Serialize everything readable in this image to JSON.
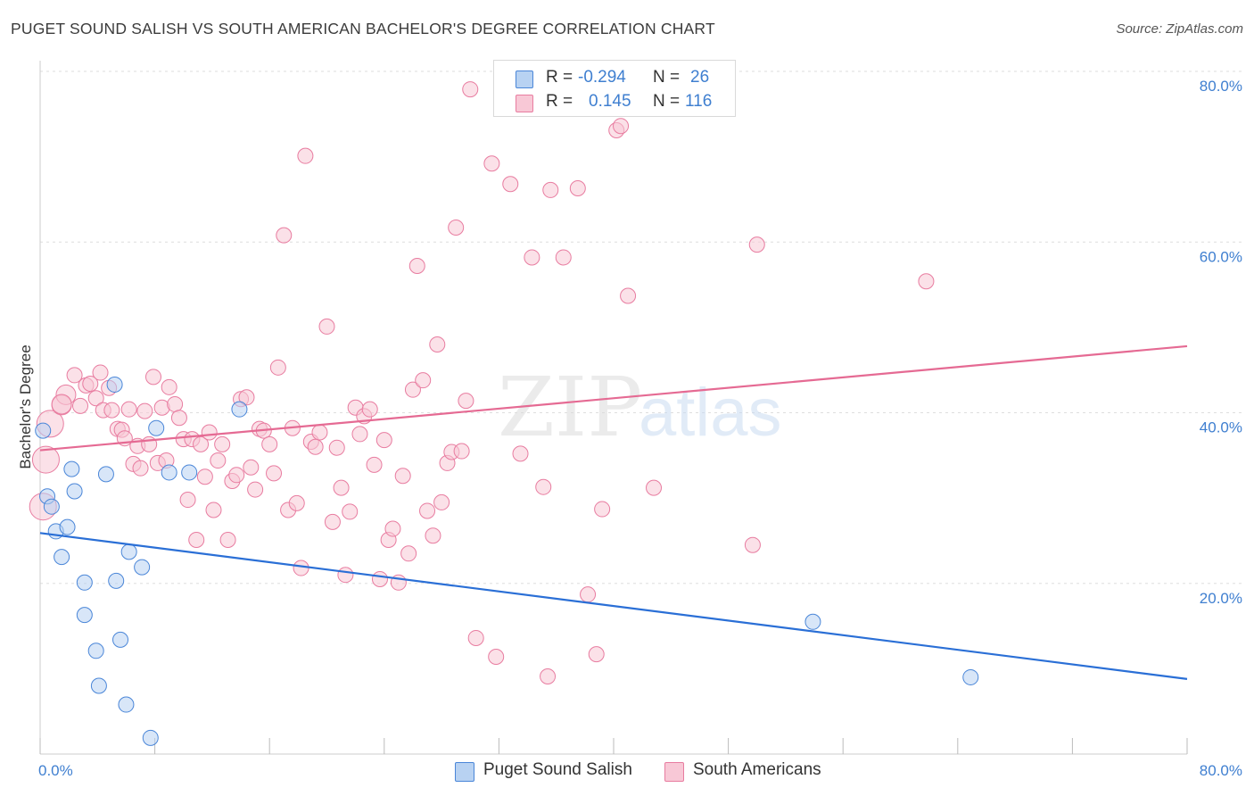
{
  "title": "PUGET SOUND SALISH VS SOUTH AMERICAN BACHELOR'S DEGREE CORRELATION CHART",
  "source": "Source: ZipAtlas.com",
  "watermark": {
    "zip": "ZIP",
    "atlas": "atlas"
  },
  "legend": {
    "r_label": "R =",
    "n_label": "N =",
    "rows": [
      {
        "r": "-0.294",
        "n": "26",
        "color": "#a8c8f0"
      },
      {
        "r": "0.145",
        "n": "116",
        "color": "#f5b6c8"
      }
    ]
  },
  "bottom_legend": [
    {
      "label": "Puget Sound Salish",
      "color": "#a8c8f0"
    },
    {
      "label": "South Americans",
      "color": "#f5b6c8"
    }
  ],
  "chart_data": {
    "type": "scatter",
    "title": "PUGET SOUND SALISH VS SOUTH AMERICAN BACHELOR'S DEGREE CORRELATION CHART",
    "xlabel": "",
    "ylabel": "Bachelor's Degree",
    "xlim": [
      0,
      80
    ],
    "ylim": [
      0,
      80
    ],
    "x_tick_labels": [
      "0.0%",
      "80.0%"
    ],
    "y_ticks": [
      20,
      40,
      60,
      80
    ],
    "y_tick_labels": [
      "20.0%",
      "40.0%",
      "60.0%",
      "80.0%"
    ],
    "grid": true,
    "legend_position": "top-center",
    "series": [
      {
        "name": "Puget Sound Salish",
        "color": "#4a86d8",
        "fill": "#b8d2f2",
        "trend": {
          "x": [
            0,
            80
          ],
          "y": [
            25.9,
            8.8
          ],
          "color": "#2a6fd6"
        },
        "points": [
          [
            0.2,
            37.9
          ],
          [
            0.5,
            30.2
          ],
          [
            0.8,
            29.0
          ],
          [
            1.1,
            26.1
          ],
          [
            1.5,
            23.1
          ],
          [
            1.9,
            26.6
          ],
          [
            2.2,
            33.4
          ],
          [
            2.4,
            30.8
          ],
          [
            3.1,
            16.3
          ],
          [
            3.1,
            20.1
          ],
          [
            3.9,
            12.1
          ],
          [
            4.1,
            8.0
          ],
          [
            4.6,
            32.8
          ],
          [
            5.2,
            43.3
          ],
          [
            5.3,
            20.3
          ],
          [
            5.6,
            13.4
          ],
          [
            6.0,
            5.8
          ],
          [
            6.2,
            23.7
          ],
          [
            7.1,
            21.9
          ],
          [
            7.7,
            1.9
          ],
          [
            8.1,
            38.2
          ],
          [
            9.0,
            33.0
          ],
          [
            10.4,
            33.0
          ],
          [
            13.9,
            40.4
          ],
          [
            53.9,
            15.5
          ],
          [
            64.9,
            9.0
          ]
        ]
      },
      {
        "name": "South Americans",
        "color": "#e87ca0",
        "fill": "#f8c8d6",
        "trend": {
          "x": [
            0,
            80
          ],
          "y": [
            35.6,
            47.8
          ],
          "color": "#e56a93"
        },
        "points": [
          [
            0.2,
            29.0
          ],
          [
            0.4,
            34.5
          ],
          [
            0.7,
            38.7
          ],
          [
            1.5,
            40.9
          ],
          [
            1.8,
            42.1
          ],
          [
            2.4,
            44.4
          ],
          [
            2.8,
            40.8
          ],
          [
            3.2,
            43.2
          ],
          [
            3.5,
            43.4
          ],
          [
            3.9,
            41.7
          ],
          [
            4.2,
            44.7
          ],
          [
            4.4,
            40.3
          ],
          [
            4.8,
            42.9
          ],
          [
            5.0,
            40.3
          ],
          [
            5.4,
            38.1
          ],
          [
            5.7,
            38.0
          ],
          [
            5.9,
            37.0
          ],
          [
            6.2,
            40.4
          ],
          [
            6.5,
            34.0
          ],
          [
            6.8,
            36.1
          ],
          [
            7.0,
            33.5
          ],
          [
            7.3,
            40.2
          ],
          [
            7.6,
            36.3
          ],
          [
            7.9,
            44.2
          ],
          [
            8.2,
            34.1
          ],
          [
            8.5,
            40.6
          ],
          [
            8.8,
            34.4
          ],
          [
            9.0,
            43.0
          ],
          [
            9.4,
            41.0
          ],
          [
            9.7,
            39.4
          ],
          [
            10.0,
            36.9
          ],
          [
            10.3,
            29.8
          ],
          [
            10.6,
            36.9
          ],
          [
            10.9,
            25.1
          ],
          [
            11.2,
            36.3
          ],
          [
            11.5,
            32.5
          ],
          [
            11.8,
            37.7
          ],
          [
            12.1,
            28.6
          ],
          [
            12.4,
            34.4
          ],
          [
            12.7,
            36.3
          ],
          [
            13.1,
            25.1
          ],
          [
            13.4,
            32.0
          ],
          [
            13.7,
            32.7
          ],
          [
            14.0,
            41.6
          ],
          [
            14.4,
            41.8
          ],
          [
            14.7,
            33.6
          ],
          [
            15.0,
            31.0
          ],
          [
            15.3,
            38.1
          ],
          [
            15.6,
            37.9
          ],
          [
            16.0,
            36.3
          ],
          [
            16.3,
            32.9
          ],
          [
            16.6,
            45.3
          ],
          [
            17.0,
            60.8
          ],
          [
            17.3,
            28.6
          ],
          [
            17.6,
            38.2
          ],
          [
            17.9,
            29.4
          ],
          [
            18.2,
            21.8
          ],
          [
            18.5,
            70.1
          ],
          [
            18.9,
            36.6
          ],
          [
            19.2,
            36.0
          ],
          [
            19.5,
            37.7
          ],
          [
            20.0,
            50.1
          ],
          [
            20.4,
            27.2
          ],
          [
            20.7,
            35.9
          ],
          [
            21.0,
            31.2
          ],
          [
            21.3,
            21.0
          ],
          [
            21.6,
            28.4
          ],
          [
            22.0,
            40.6
          ],
          [
            22.3,
            37.5
          ],
          [
            22.6,
            39.6
          ],
          [
            23.0,
            40.4
          ],
          [
            23.3,
            33.9
          ],
          [
            23.7,
            20.5
          ],
          [
            24.0,
            36.8
          ],
          [
            24.3,
            25.1
          ],
          [
            24.6,
            26.4
          ],
          [
            25.0,
            20.1
          ],
          [
            25.3,
            32.6
          ],
          [
            25.7,
            23.5
          ],
          [
            26.0,
            42.7
          ],
          [
            26.3,
            57.2
          ],
          [
            26.7,
            43.8
          ],
          [
            27.0,
            28.5
          ],
          [
            27.4,
            25.6
          ],
          [
            27.7,
            48.0
          ],
          [
            28.0,
            29.5
          ],
          [
            28.4,
            34.1
          ],
          [
            28.7,
            35.4
          ],
          [
            29.0,
            61.7
          ],
          [
            29.4,
            35.5
          ],
          [
            29.7,
            41.4
          ],
          [
            30.0,
            77.9
          ],
          [
            30.4,
            13.6
          ],
          [
            31.8,
            11.4
          ],
          [
            31.5,
            69.2
          ],
          [
            32.8,
            66.8
          ],
          [
            33.5,
            35.2
          ],
          [
            34.3,
            58.2
          ],
          [
            35.1,
            31.3
          ],
          [
            35.4,
            9.1
          ],
          [
            35.6,
            66.1
          ],
          [
            36.5,
            58.2
          ],
          [
            37.5,
            66.3
          ],
          [
            38.2,
            18.7
          ],
          [
            38.8,
            11.7
          ],
          [
            39.2,
            28.7
          ],
          [
            40.2,
            73.1
          ],
          [
            40.5,
            73.6
          ],
          [
            41.0,
            53.7
          ],
          [
            42.8,
            31.2
          ],
          [
            49.7,
            24.5
          ],
          [
            50.0,
            59.7
          ],
          [
            61.8,
            55.4
          ],
          [
            1.5,
            41.0
          ]
        ]
      }
    ]
  }
}
